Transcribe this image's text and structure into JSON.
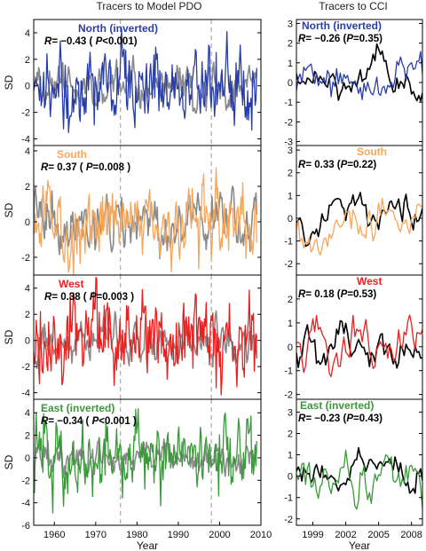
{
  "left_header": "Tracers to Model PDO",
  "right_header": "Tracers to CCI",
  "colors": {
    "blue": "#2a3ea8",
    "orange": "#f7a65a",
    "red": "#e8201f",
    "green": "#3a9a3a",
    "grey": "#8a8a8a",
    "black": "#000000"
  },
  "chart_data": [
    {
      "type": "line",
      "panel": "left-north",
      "title": "North (inverted)",
      "stat": {
        "prefix": "R",
        "r": "= −0.43",
        "mid": " ( ",
        "p": "P",
        "rest": "<0.001)"
      },
      "ylabel": "SD",
      "xlim": [
        1955,
        2010
      ],
      "ylim": [
        -4.5,
        5
      ],
      "yticks": [
        4,
        2,
        0,
        -2,
        -4
      ],
      "xticks": [],
      "x_start": 1955,
      "x_end": 2009,
      "n": 270,
      "dashed_x": [
        1976,
        1998
      ],
      "series": [
        {
          "color": "grey",
          "amplitude": 1.1,
          "seed": 11,
          "smooth": 0.62
        },
        {
          "color": "blue",
          "amplitude": 1.6,
          "seed": 12,
          "smooth": 0.45
        }
      ]
    },
    {
      "type": "line",
      "panel": "left-south",
      "title": "South",
      "stat": {
        "prefix": "R",
        "r": "= 0.37",
        "mid": " ( ",
        "p": "P",
        "rest": "=0.008 )"
      },
      "ylabel": "SD",
      "xlim": [
        1955,
        2010
      ],
      "ylim": [
        -3,
        4.3
      ],
      "yticks": [
        4,
        2,
        0,
        -2
      ],
      "xticks": [],
      "x_start": 1955,
      "x_end": 2009,
      "n": 270,
      "dashed_x": [
        1976,
        1998
      ],
      "series": [
        {
          "color": "grey",
          "amplitude": 1.0,
          "seed": 21,
          "smooth": 0.62
        },
        {
          "color": "orange",
          "amplitude": 1.2,
          "seed": 22,
          "smooth": 0.5
        }
      ]
    },
    {
      "type": "line",
      "panel": "left-west",
      "title": "West",
      "stat": {
        "prefix": "R",
        "r": "= 0.38",
        "mid": " ( ",
        "p": "P",
        "rest": "=0.003 )"
      },
      "ylabel": "SD",
      "xlim": [
        1955,
        2010
      ],
      "ylim": [
        -4.5,
        5
      ],
      "yticks": [
        4,
        2,
        0,
        -2,
        -4
      ],
      "xticks": [],
      "x_start": 1955,
      "x_end": 2009,
      "n": 270,
      "dashed_x": [
        1976,
        1998
      ],
      "series": [
        {
          "color": "grey",
          "amplitude": 1.0,
          "seed": 31,
          "smooth": 0.62
        },
        {
          "color": "red",
          "amplitude": 1.5,
          "seed": 32,
          "smooth": 0.4
        }
      ]
    },
    {
      "type": "line",
      "panel": "left-east",
      "title": "East (inverted)",
      "stat": {
        "prefix": "R",
        "r": "= −0.34",
        "mid": " ( ",
        "p": "P",
        "rest": "<0.001 )"
      },
      "ylabel": "SD",
      "xlabel": "Year",
      "xlim": [
        1955,
        2010
      ],
      "ylim": [
        -6,
        5.2
      ],
      "yticks": [
        4,
        2,
        0,
        -2,
        -4,
        -6
      ],
      "xticks": [
        1960,
        1970,
        1980,
        1990,
        2000,
        2010
      ],
      "x_start": 1955,
      "x_end": 2009,
      "n": 270,
      "dashed_x": [
        1976,
        1998
      ],
      "series": [
        {
          "color": "grey",
          "amplitude": 1.0,
          "seed": 41,
          "smooth": 0.62
        },
        {
          "color": "green",
          "amplitude": 1.7,
          "seed": 42,
          "smooth": 0.4
        }
      ]
    },
    {
      "type": "line",
      "panel": "right-north",
      "title": "North (inverted)",
      "stat": {
        "prefix": "R",
        "r": "= −0.26",
        "mid": " (",
        "p": "P",
        "rest": "=0.35)"
      },
      "ylim": [
        -3.2,
        3.2
      ],
      "yticks": [
        3,
        2,
        1,
        0,
        -1,
        -2,
        -3
      ],
      "xlim": [
        1997.5,
        2009
      ],
      "xticks": [],
      "x_start": 1997.5,
      "x_end": 2009,
      "n": 70,
      "series": [
        {
          "color": "black",
          "amplitude": 1.1,
          "seed": 51,
          "smooth": 0.8
        },
        {
          "color": "blue",
          "amplitude": 1.2,
          "seed": 52,
          "smooth": 0.78
        }
      ]
    },
    {
      "type": "line",
      "panel": "right-south",
      "title": "South",
      "stat": {
        "prefix": "R",
        "r": "= 0.33",
        "mid": " (",
        "p": "P",
        "rest": "=0.22)"
      },
      "ylim": [
        -2.5,
        3.2
      ],
      "yticks": [
        3,
        2,
        1,
        0,
        -1,
        -2
      ],
      "xlim": [
        1997.5,
        2009
      ],
      "xticks": [],
      "x_start": 1997.5,
      "x_end": 2009,
      "n": 70,
      "series": [
        {
          "color": "black",
          "amplitude": 1.0,
          "seed": 61,
          "smooth": 0.8
        },
        {
          "color": "orange",
          "amplitude": 1.2,
          "seed": 62,
          "smooth": 0.78
        }
      ]
    },
    {
      "type": "line",
      "panel": "right-west",
      "title": "West",
      "stat": {
        "prefix": "R",
        "r": "= 0.18",
        "mid": " (",
        "p": "P",
        "rest": "=0.53)"
      },
      "ylim": [
        -2.2,
        3
      ],
      "yticks": [
        2,
        1,
        0,
        -1,
        -2
      ],
      "xlim": [
        1997.5,
        2009
      ],
      "xticks": [],
      "x_start": 1997.5,
      "x_end": 2009,
      "n": 70,
      "series": [
        {
          "color": "black",
          "amplitude": 1.0,
          "seed": 71,
          "smooth": 0.8
        },
        {
          "color": "red",
          "amplitude": 1.2,
          "seed": 72,
          "smooth": 0.75
        }
      ]
    },
    {
      "type": "line",
      "panel": "right-east",
      "title": "East  (inverted)",
      "stat": {
        "prefix": "R",
        "r": "= −0.23",
        "mid": " (",
        "p": "P",
        "rest": "=0.43)"
      },
      "xlabel": "Year",
      "ylim": [
        -2.3,
        3.6
      ],
      "yticks": [
        3,
        2,
        1,
        0,
        -1,
        -2
      ],
      "xlim": [
        1997.5,
        2009
      ],
      "xticks": [
        1999,
        2002,
        2005,
        2008
      ],
      "x_start": 1997.5,
      "x_end": 2009,
      "n": 70,
      "series": [
        {
          "color": "black",
          "amplitude": 1.0,
          "seed": 81,
          "smooth": 0.8
        },
        {
          "color": "green",
          "amplitude": 1.2,
          "seed": 82,
          "smooth": 0.75
        }
      ]
    }
  ]
}
